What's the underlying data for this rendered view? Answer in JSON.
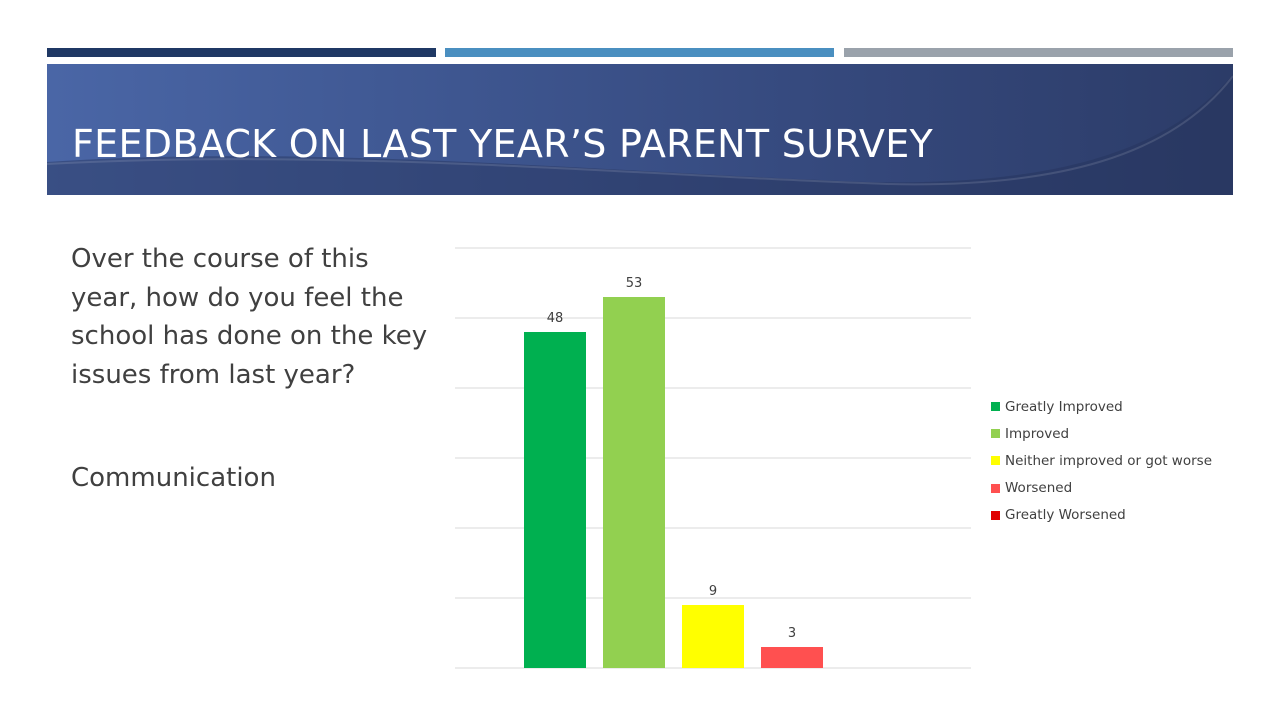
{
  "slide": {
    "title": "FEEDBACK ON LAST YEAR’S PARENT SURVEY",
    "question": "Over the course of this year, how do you feel the school has done on the key issues from last year?",
    "topic": "Communication",
    "accent_colors": [
      "#1f3864",
      "#4a8fc0",
      "#9aa2ab"
    ]
  },
  "chart_data": {
    "type": "bar",
    "categories": [
      "Greatly Improved",
      "Improved",
      "Neither improved or got worse",
      "Worsened",
      "Greatly Worsened"
    ],
    "values": [
      48,
      53,
      9,
      3,
      0
    ],
    "colors": [
      "#00b050",
      "#92d050",
      "#ffff00",
      "#ff5050",
      "#e00000"
    ],
    "data_labels": [
      "48",
      "53",
      "9",
      "3",
      ""
    ],
    "ylim": [
      0,
      60
    ],
    "grid": true,
    "legend": "right",
    "title": "",
    "xlabel": "",
    "ylabel": ""
  }
}
